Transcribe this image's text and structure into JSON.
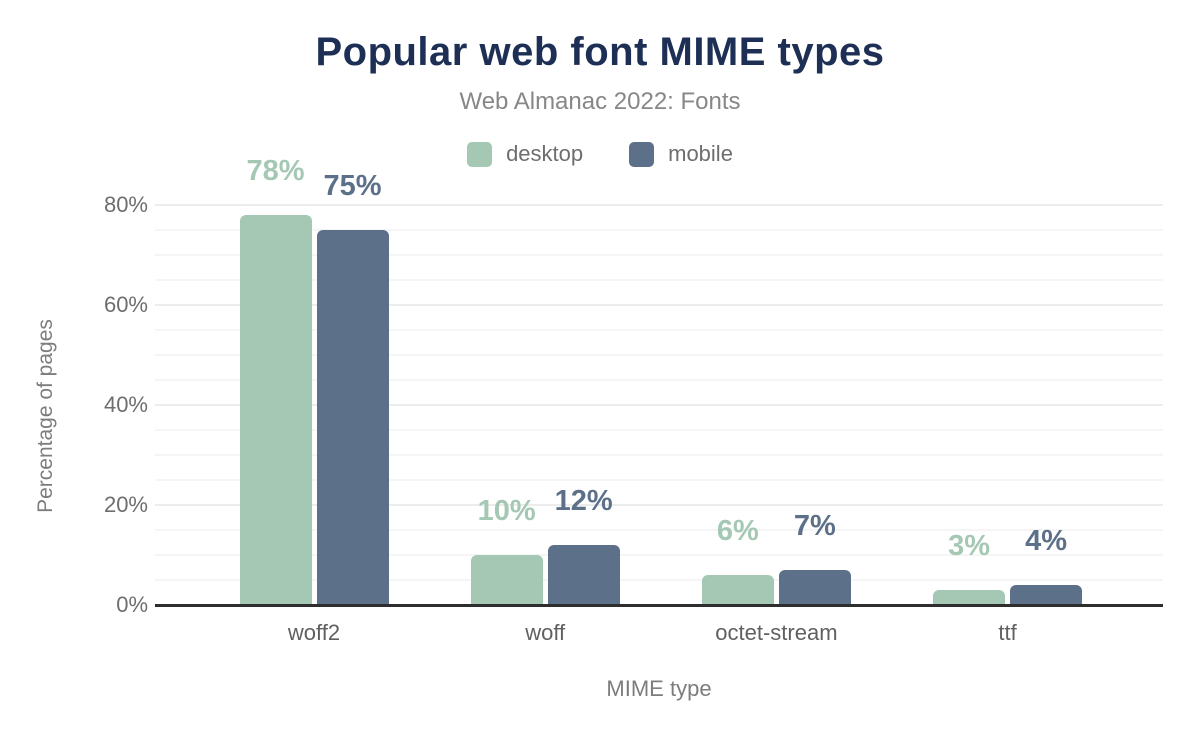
{
  "chart_data": {
    "type": "bar",
    "title": "Popular web font MIME types",
    "subtitle": "Web Almanac 2022: Fonts",
    "xlabel": "MIME type",
    "ylabel": "Percentage of pages",
    "categories": [
      "woff2",
      "woff",
      "octet-stream",
      "ttf"
    ],
    "series": [
      {
        "name": "desktop",
        "color": "#a4c8b4",
        "values": [
          78,
          10,
          6,
          3
        ],
        "labels": [
          "78%",
          "10%",
          "6%",
          "3%"
        ]
      },
      {
        "name": "mobile",
        "color": "#5d7089",
        "values": [
          75,
          12,
          7,
          4
        ],
        "labels": [
          "75%",
          "12%",
          "7%",
          "4%"
        ]
      }
    ],
    "ylim": [
      0,
      80
    ],
    "yticks": [
      {
        "value": 0,
        "label": "0%"
      },
      {
        "value": 20,
        "label": "20%"
      },
      {
        "value": 40,
        "label": "40%"
      },
      {
        "value": 60,
        "label": "60%"
      },
      {
        "value": 80,
        "label": "80%"
      }
    ],
    "grid": {
      "minor_step": 5,
      "major_step": 20,
      "visible": true
    },
    "legend_position": "top",
    "value_suffix": "%"
  },
  "colors": {
    "title_navy": "#1d2f55",
    "desktop_green": "#a4c8b4",
    "mobile_blue": "#5d7089",
    "axis_line": "#2e2e2e",
    "muted_text": "#7d7d7d"
  }
}
